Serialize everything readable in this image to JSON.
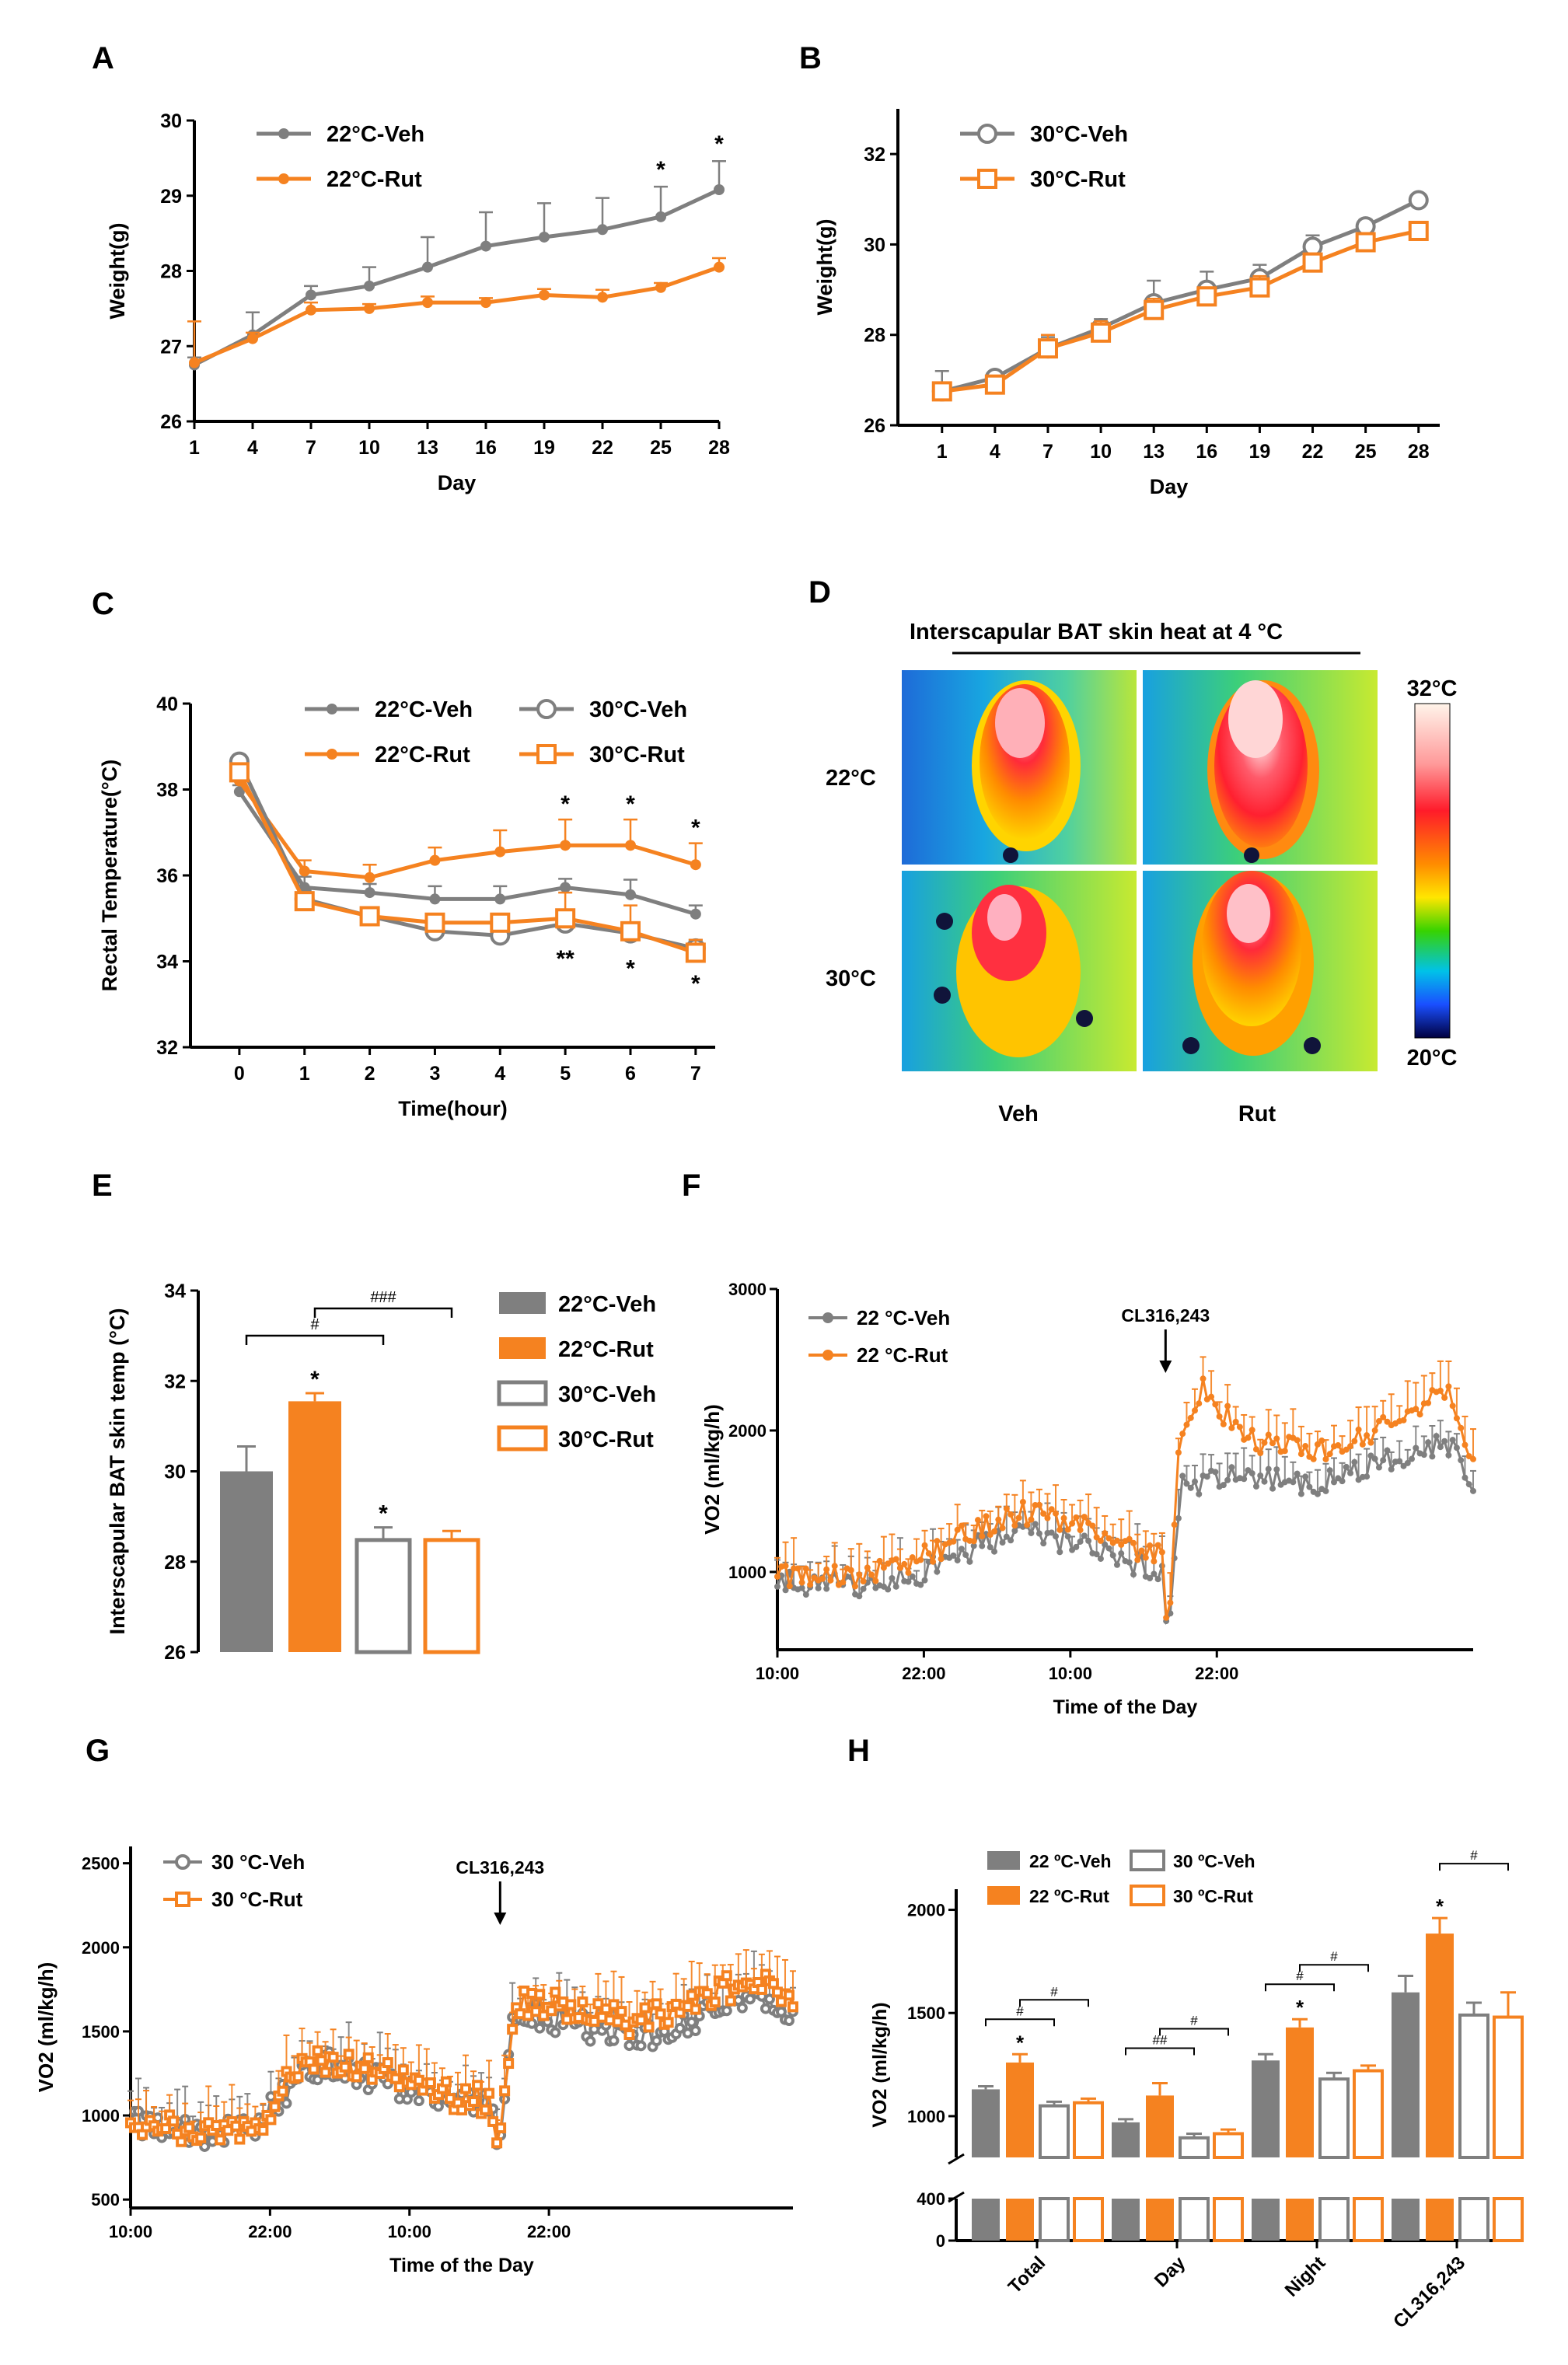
{
  "colors": {
    "gray": "#7f7f7f",
    "orange": "#f58220",
    "black": "#000000"
  },
  "panels": {
    "A": "A",
    "B": "B",
    "C": "C",
    "D": "D",
    "E": "E",
    "F": "F",
    "G": "G",
    "H": "H"
  },
  "chart_data": [
    {
      "id": "A",
      "type": "line",
      "xlabel": "Day",
      "ylabel": "Weight(g)",
      "x": [
        1,
        4,
        7,
        10,
        13,
        16,
        19,
        22,
        25,
        28
      ],
      "ylim": [
        26,
        30
      ],
      "yticks": [
        26,
        27,
        28,
        29,
        30
      ],
      "series": [
        {
          "name": "22°C-Veh",
          "color": "gray",
          "marker": "filled",
          "values": [
            26.75,
            27.15,
            27.68,
            27.8,
            28.05,
            28.33,
            28.45,
            28.55,
            28.72,
            29.08
          ],
          "errors": [
            0.1,
            0.3,
            0.12,
            0.25,
            0.4,
            0.45,
            0.45,
            0.42,
            0.4,
            0.38
          ]
        },
        {
          "name": "22°C-Rut",
          "color": "orange",
          "marker": "filled",
          "values": [
            26.78,
            27.1,
            27.48,
            27.5,
            27.58,
            27.58,
            27.68,
            27.65,
            27.78,
            28.05
          ],
          "errors": [
            0.55,
            0.08,
            0.1,
            0.06,
            0.08,
            0.06,
            0.08,
            0.1,
            0.06,
            0.12
          ]
        }
      ],
      "annotations": [
        {
          "x": 25,
          "text": "*"
        },
        {
          "x": 28,
          "text": "*"
        }
      ]
    },
    {
      "id": "B",
      "type": "line",
      "xlabel": "Day",
      "ylabel": "Weight(g)",
      "x": [
        1,
        4,
        7,
        10,
        13,
        16,
        19,
        22,
        25,
        28
      ],
      "ylim": [
        26,
        33
      ],
      "yticks": [
        26,
        28,
        30,
        32
      ],
      "series": [
        {
          "name": "30°C-Veh",
          "color": "gray",
          "marker": "open-circle",
          "values": [
            26.75,
            27.05,
            27.7,
            28.15,
            28.7,
            29.0,
            29.25,
            29.95,
            30.4,
            30.98
          ],
          "errors": [
            0.45,
            0.1,
            0.25,
            0.2,
            0.5,
            0.4,
            0.3,
            0.25,
            0.15,
            0.1
          ]
        },
        {
          "name": "30°C-Rut",
          "color": "orange",
          "marker": "open-square",
          "values": [
            26.75,
            26.9,
            27.7,
            28.05,
            28.55,
            28.85,
            29.05,
            29.6,
            30.05,
            30.3
          ],
          "errors": [
            0.2,
            0.1,
            0.3,
            0.25,
            0.25,
            0.2,
            0.25,
            0.2,
            0.15,
            0.15
          ]
        }
      ]
    },
    {
      "id": "C",
      "type": "line",
      "xlabel": "Time(hour)",
      "ylabel": "Rectal Temperature(°C)",
      "x": [
        0,
        1,
        2,
        3,
        4,
        5,
        6,
        7
      ],
      "ylim": [
        32,
        40
      ],
      "yticks": [
        32,
        34,
        36,
        38,
        40
      ],
      "series": [
        {
          "name": "22°C-Veh",
          "color": "gray",
          "marker": "filled",
          "values": [
            37.95,
            35.72,
            35.6,
            35.45,
            35.45,
            35.72,
            35.55,
            35.1
          ],
          "errors": [
            0.15,
            0.25,
            0.2,
            0.3,
            0.3,
            0.2,
            0.35,
            0.2
          ]
        },
        {
          "name": "22°C-Rut",
          "color": "orange",
          "marker": "filled",
          "values": [
            38.2,
            36.1,
            35.95,
            36.35,
            36.55,
            36.7,
            36.7,
            36.25
          ],
          "errors": [
            0.2,
            0.25,
            0.3,
            0.3,
            0.5,
            0.6,
            0.6,
            0.5
          ]
        },
        {
          "name": "30°C-Veh",
          "color": "gray",
          "marker": "open-circle",
          "values": [
            38.65,
            35.45,
            35.05,
            34.7,
            34.6,
            34.88,
            34.65,
            34.3
          ],
          "errors": [
            0.15,
            0.2,
            0.2,
            0.2,
            0.2,
            0.3,
            0.2,
            0.2
          ]
        },
        {
          "name": "30°C-Rut",
          "color": "orange",
          "marker": "open-square",
          "values": [
            38.4,
            35.4,
            35.05,
            34.9,
            34.9,
            35.0,
            34.7,
            34.2
          ],
          "errors": [
            0.2,
            0.2,
            0.2,
            0.2,
            0.2,
            0.6,
            0.6,
            0.3
          ]
        }
      ],
      "annotations": [
        {
          "x": 5,
          "text": "*",
          "color": "orange",
          "pos": "upper"
        },
        {
          "x": 6,
          "text": "*",
          "color": "orange",
          "pos": "upper"
        },
        {
          "x": 7,
          "text": "*",
          "color": "orange",
          "pos": "upper"
        },
        {
          "x": 5,
          "text": "**",
          "color": "gray",
          "pos": "lower"
        },
        {
          "x": 6,
          "text": "*",
          "color": "gray",
          "pos": "lower"
        },
        {
          "x": 7,
          "text": "*",
          "color": "gray",
          "pos": "lower"
        }
      ]
    },
    {
      "id": "E",
      "type": "bar",
      "ylabel": "Interscapular BAT skin temp (°C)",
      "categories": [
        "22°C-Veh",
        "22°C-Rut",
        "30°C-Veh",
        "30°C-Rut"
      ],
      "values": [
        30.0,
        31.55,
        28.48,
        28.48
      ],
      "errors": [
        0.55,
        0.18,
        0.28,
        0.2
      ],
      "styles": [
        "gray-filled",
        "orange-filled",
        "gray-open",
        "orange-open"
      ],
      "ylim": [
        26,
        34
      ],
      "yticks": [
        26,
        28,
        30,
        32,
        34
      ],
      "annotations": [
        {
          "bar": 1,
          "text": "*"
        },
        {
          "bar": 2,
          "text": "*"
        }
      ],
      "brackets": [
        {
          "from": 0,
          "to": 2,
          "text": "#"
        },
        {
          "from": 1,
          "to": 3,
          "text": "###"
        }
      ]
    },
    {
      "id": "F",
      "type": "line",
      "xlabel": "Time of the Day",
      "ylabel": "VO2 (ml/kg/h)",
      "x_ticks": [
        "10:00",
        "22:00",
        "10:00",
        "22:00"
      ],
      "ylim": [
        450,
        3000
      ],
      "yticks": [
        1000,
        2000,
        3000
      ],
      "injection_label": "CL316,243",
      "series": [
        {
          "name": "22 °C-Veh",
          "color": "gray",
          "profile": [
            [
              0,
              930
            ],
            [
              6,
              900
            ],
            [
              11,
              960
            ],
            [
              17,
              1200
            ],
            [
              20,
              1290
            ],
            [
              25,
              1180
            ],
            [
              29,
              1060
            ],
            [
              31.5,
              1020
            ],
            [
              32,
              500
            ],
            [
              33,
              1600
            ],
            [
              38,
              1680
            ],
            [
              44,
              1600
            ],
            [
              49,
              1760
            ],
            [
              55,
              1900
            ],
            [
              57,
              1620
            ]
          ]
        },
        {
          "name": "22 °C-Rut",
          "color": "orange",
          "profile": [
            [
              0,
              960
            ],
            [
              6,
              960
            ],
            [
              11,
              1060
            ],
            [
              17,
              1330
            ],
            [
              20,
              1420
            ],
            [
              25,
              1350
            ],
            [
              29,
              1150
            ],
            [
              31.5,
              1100
            ],
            [
              32,
              500
            ],
            [
              33,
              2000
            ],
            [
              35,
              2320
            ],
            [
              38,
              1950
            ],
            [
              44,
              1840
            ],
            [
              49,
              1980
            ],
            [
              55,
              2280
            ],
            [
              57,
              1800
            ]
          ]
        }
      ]
    },
    {
      "id": "G",
      "type": "line",
      "xlabel": "Time of the Day",
      "ylabel": "VO2 (ml/kg/h)",
      "x_ticks": [
        "10:00",
        "22:00",
        "10:00",
        "22:00"
      ],
      "ylim": [
        450,
        2600
      ],
      "yticks": [
        500,
        1000,
        1500,
        2000,
        2500
      ],
      "injection_label": "CL316,243",
      "series": [
        {
          "name": "30 °C-Veh",
          "color": "gray",
          "marker": "open-circle",
          "profile": [
            [
              0,
              950
            ],
            [
              6,
              880
            ],
            [
              11,
              940
            ],
            [
              14,
              1200
            ],
            [
              17,
              1320
            ],
            [
              21,
              1220
            ],
            [
              27,
              1100
            ],
            [
              31,
              1060
            ],
            [
              31.6,
              720
            ],
            [
              33,
              1620
            ],
            [
              38,
              1560
            ],
            [
              43,
              1440
            ],
            [
              48,
              1540
            ],
            [
              53,
              1700
            ],
            [
              57,
              1620
            ]
          ]
        },
        {
          "name": "30 °C-Rut",
          "color": "orange",
          "marker": "open-square",
          "profile": [
            [
              0,
              980
            ],
            [
              6,
              900
            ],
            [
              11,
              960
            ],
            [
              14,
              1230
            ],
            [
              17,
              1350
            ],
            [
              21,
              1260
            ],
            [
              27,
              1130
            ],
            [
              31,
              1080
            ],
            [
              31.6,
              760
            ],
            [
              33,
              1680
            ],
            [
              38,
              1640
            ],
            [
              43,
              1550
            ],
            [
              48,
              1650
            ],
            [
              53,
              1800
            ],
            [
              57,
              1700
            ]
          ]
        }
      ]
    },
    {
      "id": "H",
      "type": "bar",
      "ylabel": "VO2 (ml/kg/h)",
      "categories": [
        "Total",
        "Day",
        "Night",
        "CL316,243"
      ],
      "series": [
        {
          "name": "22 ºC-Veh",
          "style": "gray-filled",
          "values": [
            1130,
            970,
            1270,
            1600
          ],
          "errors": [
            15,
            15,
            30,
            80
          ]
        },
        {
          "name": "22 ºC-Rut",
          "style": "orange-filled",
          "values": [
            1260,
            1100,
            1430,
            1885
          ],
          "errors": [
            40,
            60,
            40,
            75
          ]
        },
        {
          "name": "30 ºC-Veh",
          "style": "gray-open",
          "values": [
            1050,
            895,
            1180,
            1490
          ],
          "errors": [
            20,
            20,
            30,
            60
          ]
        },
        {
          "name": "30 ºC-Rut",
          "style": "orange-open",
          "values": [
            1065,
            915,
            1220,
            1480
          ],
          "errors": [
            20,
            20,
            25,
            120
          ]
        }
      ],
      "yticks": [
        0,
        400,
        1000,
        1500,
        2000
      ],
      "axis_break": [
        400,
        800
      ],
      "annotations": [
        {
          "group": 0,
          "text": "*"
        },
        {
          "group": 2,
          "text": "*"
        },
        {
          "group": 3,
          "text": "*"
        }
      ],
      "brackets": [
        {
          "group": 0,
          "from": 0,
          "to": 2,
          "text": "#"
        },
        {
          "group": 0,
          "from": 1,
          "to": 3,
          "text": "#"
        },
        {
          "group": 1,
          "from": 0,
          "to": 2,
          "text": "##"
        },
        {
          "group": 1,
          "from": 1,
          "to": 3,
          "text": "#"
        },
        {
          "group": 2,
          "from": 0,
          "to": 2,
          "text": "#"
        },
        {
          "group": 2,
          "from": 1,
          "to": 3,
          "text": "#"
        },
        {
          "group": 3,
          "from": 1,
          "to": 3,
          "text": "#"
        }
      ]
    }
  ],
  "thermal": {
    "title": "Interscapular BAT skin heat at 4 °C",
    "rows": [
      "22°C",
      "30°C"
    ],
    "cols": [
      "Veh",
      "Rut"
    ],
    "scale_max": "32°C",
    "scale_min": "20°C"
  }
}
